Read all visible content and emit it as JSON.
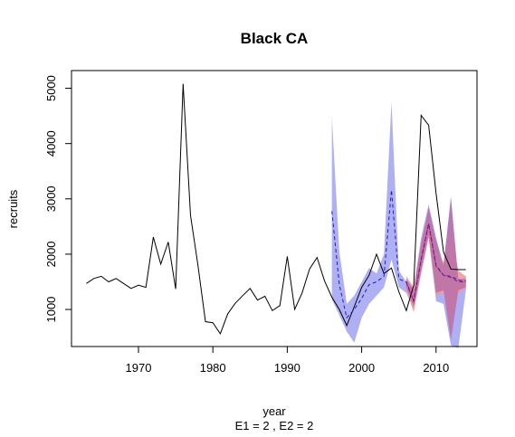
{
  "chart_data": {
    "type": "line",
    "title": "Black CA",
    "xlabel": "year",
    "xlabel2": "E1 = 2 , E2 = 2",
    "ylabel": "recruits",
    "xlim": [
      1961,
      2015.5
    ],
    "ylim": [
      330,
      5320
    ],
    "xticks": [
      1970,
      1980,
      1990,
      2000,
      2010
    ],
    "yticks": [
      1000,
      2000,
      3000,
      4000,
      5000
    ],
    "grid": false,
    "colors": {
      "observed": "#000000",
      "band1": "#a6a6f2",
      "band2": "#f29a9a",
      "band3": "#b870a8",
      "dashed_forecast": "#1f1fbf",
      "dashed_forecast2": "#b01060"
    },
    "series": [
      {
        "role": "observed",
        "x": [
          1963,
          1964,
          1965,
          1966,
          1967,
          1968,
          1969,
          1970,
          1971,
          1972,
          1973,
          1974,
          1975,
          1976,
          1977,
          1978,
          1979,
          1980,
          1981,
          1982,
          1983,
          1984,
          1985,
          1986,
          1987,
          1988,
          1989,
          1990,
          1991,
          1992,
          1993,
          1994,
          1995,
          1996,
          1997,
          1998,
          1999,
          2000,
          2001,
          2002,
          2003,
          2004,
          2005,
          2006,
          2007,
          2008,
          2009,
          2010,
          2011,
          2012,
          2013,
          2014
        ],
        "y": [
          1470,
          1560,
          1600,
          1500,
          1560,
          1470,
          1380,
          1440,
          1400,
          2310,
          1820,
          2220,
          1370,
          5080,
          2700,
          1800,
          780,
          760,
          560,
          920,
          1110,
          1250,
          1380,
          1170,
          1240,
          980,
          1070,
          1960,
          1000,
          1300,
          1730,
          1940,
          1520,
          1220,
          1000,
          710,
          1050,
          1400,
          1620,
          2000,
          1650,
          1750,
          1320,
          980,
          1440,
          4510,
          4330,
          3100,
          2040,
          1730,
          1720,
          1720
        ]
      },
      {
        "role": "band",
        "color": "band1",
        "x": [
          1996,
          1997,
          1998,
          1999,
          2000,
          2001,
          2002,
          2003,
          2004,
          2005,
          2006,
          2007,
          2008,
          2009,
          2010,
          2011,
          2012,
          2013,
          2014
        ],
        "lower": [
          1180,
          900,
          600,
          400,
          850,
          1100,
          1250,
          1400,
          1900,
          1400,
          1300,
          1000,
          1650,
          2300,
          1150,
          1100,
          350,
          300,
          1350
        ],
        "upper": [
          4480,
          2050,
          1100,
          1250,
          1500,
          1750,
          1650,
          2000,
          4750,
          1700,
          1500,
          1400,
          2300,
          2900,
          2300,
          1800,
          3050,
          1500,
          1600
        ]
      },
      {
        "role": "band",
        "color": "band2",
        "x": [
          2006,
          2007,
          2008,
          2009,
          2010,
          2011,
          2012,
          2013,
          2014
        ],
        "lower": [
          1350,
          950,
          1650,
          2300,
          1250,
          1300,
          700,
          1300,
          1380
        ],
        "upper": [
          1600,
          1400,
          2200,
          2700,
          2100,
          1850,
          2400,
          1700,
          1600
        ]
      },
      {
        "role": "band",
        "color": "band3",
        "x": [
          2006,
          2007,
          2008,
          2009,
          2010,
          2011,
          2012,
          2013,
          2014
        ],
        "lower": [
          1400,
          1050,
          1700,
          2350,
          1300,
          1350,
          450,
          1350,
          1400
        ],
        "upper": [
          1550,
          1350,
          2200,
          2850,
          2250,
          1800,
          3000,
          1550,
          1550
        ]
      },
      {
        "role": "forecast",
        "color": "dashed_forecast",
        "dash": true,
        "x": [
          1996,
          1997,
          1998,
          1999,
          2000,
          2001,
          2002,
          2003,
          2004,
          2005,
          2006,
          2007,
          2008,
          2009,
          2010,
          2011,
          2012,
          2013,
          2014
        ],
        "y": [
          2780,
          1450,
          850,
          1000,
          1200,
          1450,
          1500,
          1600,
          3160,
          1550,
          1500,
          1150,
          1900,
          2550,
          1800,
          1620,
          1600,
          1530,
          1510
        ]
      },
      {
        "role": "forecast",
        "color": "dashed_forecast2",
        "dash": true,
        "x": [
          2006,
          2007,
          2008,
          2009,
          2010,
          2011,
          2012,
          2013,
          2014
        ],
        "y": [
          1480,
          1150,
          1900,
          2550,
          1780,
          1620,
          1580,
          1500,
          1500
        ]
      }
    ]
  }
}
